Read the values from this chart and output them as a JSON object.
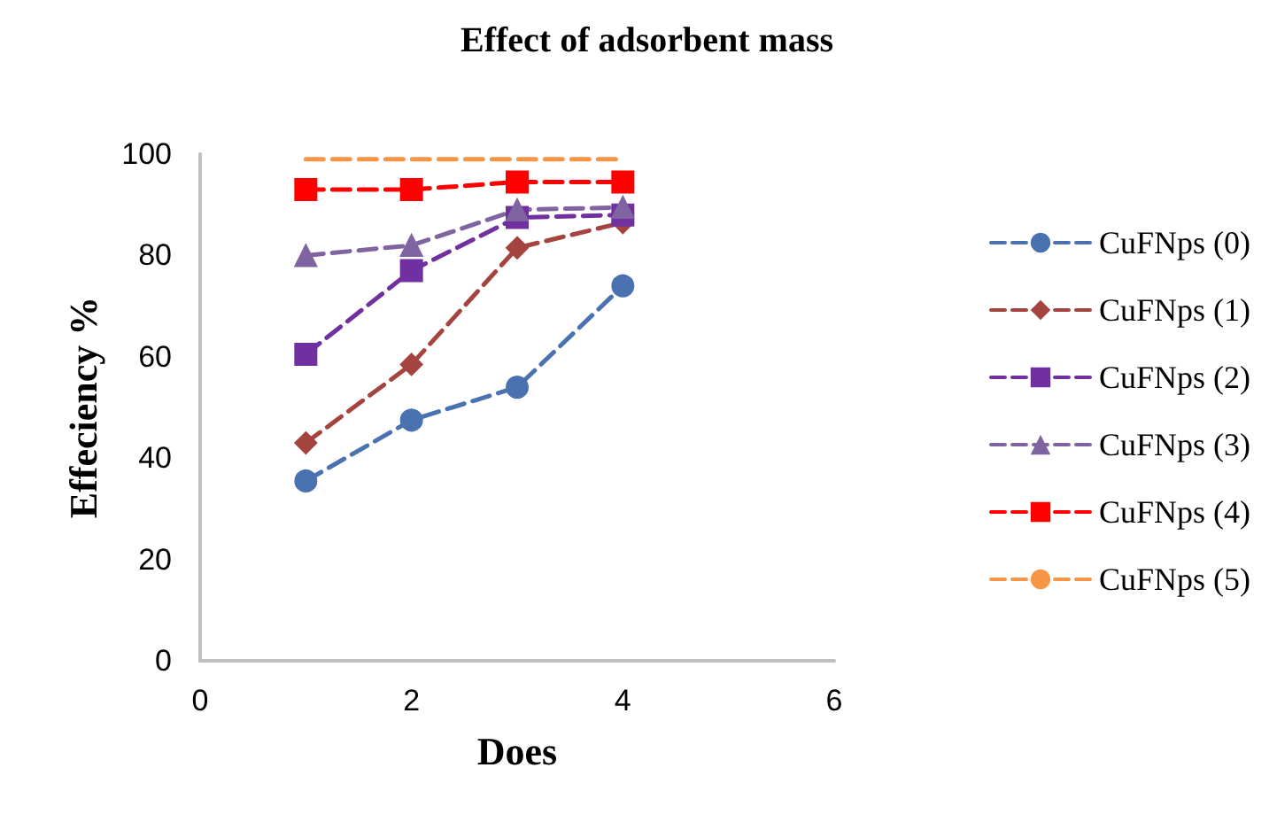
{
  "chart_data": {
    "type": "line",
    "title": "Effect of adsorbent mass",
    "xlabel": "Does",
    "ylabel": "Effeciency %",
    "xlim": [
      0,
      6
    ],
    "xticks": [
      0,
      2,
      4,
      6
    ],
    "ylim": [
      0,
      100
    ],
    "yticks": [
      0,
      20,
      40,
      60,
      80,
      100
    ],
    "grid": false,
    "legend": "right",
    "line_style": "dashed",
    "x": [
      1,
      2,
      3,
      4
    ],
    "series": [
      {
        "name": "CuFNps (0)",
        "color": "#4a72b0",
        "marker": "circle",
        "values": [
          35.5,
          47.5,
          54,
          74
        ]
      },
      {
        "name": "CuFNps (1)",
        "color": "#a5443f",
        "marker": "diamond",
        "values": [
          43,
          58.5,
          81.5,
          86.5
        ]
      },
      {
        "name": "CuFNps (2)",
        "color": "#7030a0",
        "marker": "cross",
        "values": [
          60.5,
          77,
          87.5,
          88
        ]
      },
      {
        "name": "CuFNps (3)",
        "color": "#8064a2",
        "marker": "triangle",
        "values": [
          80,
          82,
          89,
          89.5
        ]
      },
      {
        "name": "CuFNps (4)",
        "color": "#ff0000",
        "marker": "square",
        "values": [
          93,
          93,
          94.5,
          94.5
        ]
      },
      {
        "name": "CuFNps (5)",
        "color": "#f79646",
        "marker": "none",
        "values": [
          99,
          99,
          99,
          99
        ]
      }
    ]
  }
}
